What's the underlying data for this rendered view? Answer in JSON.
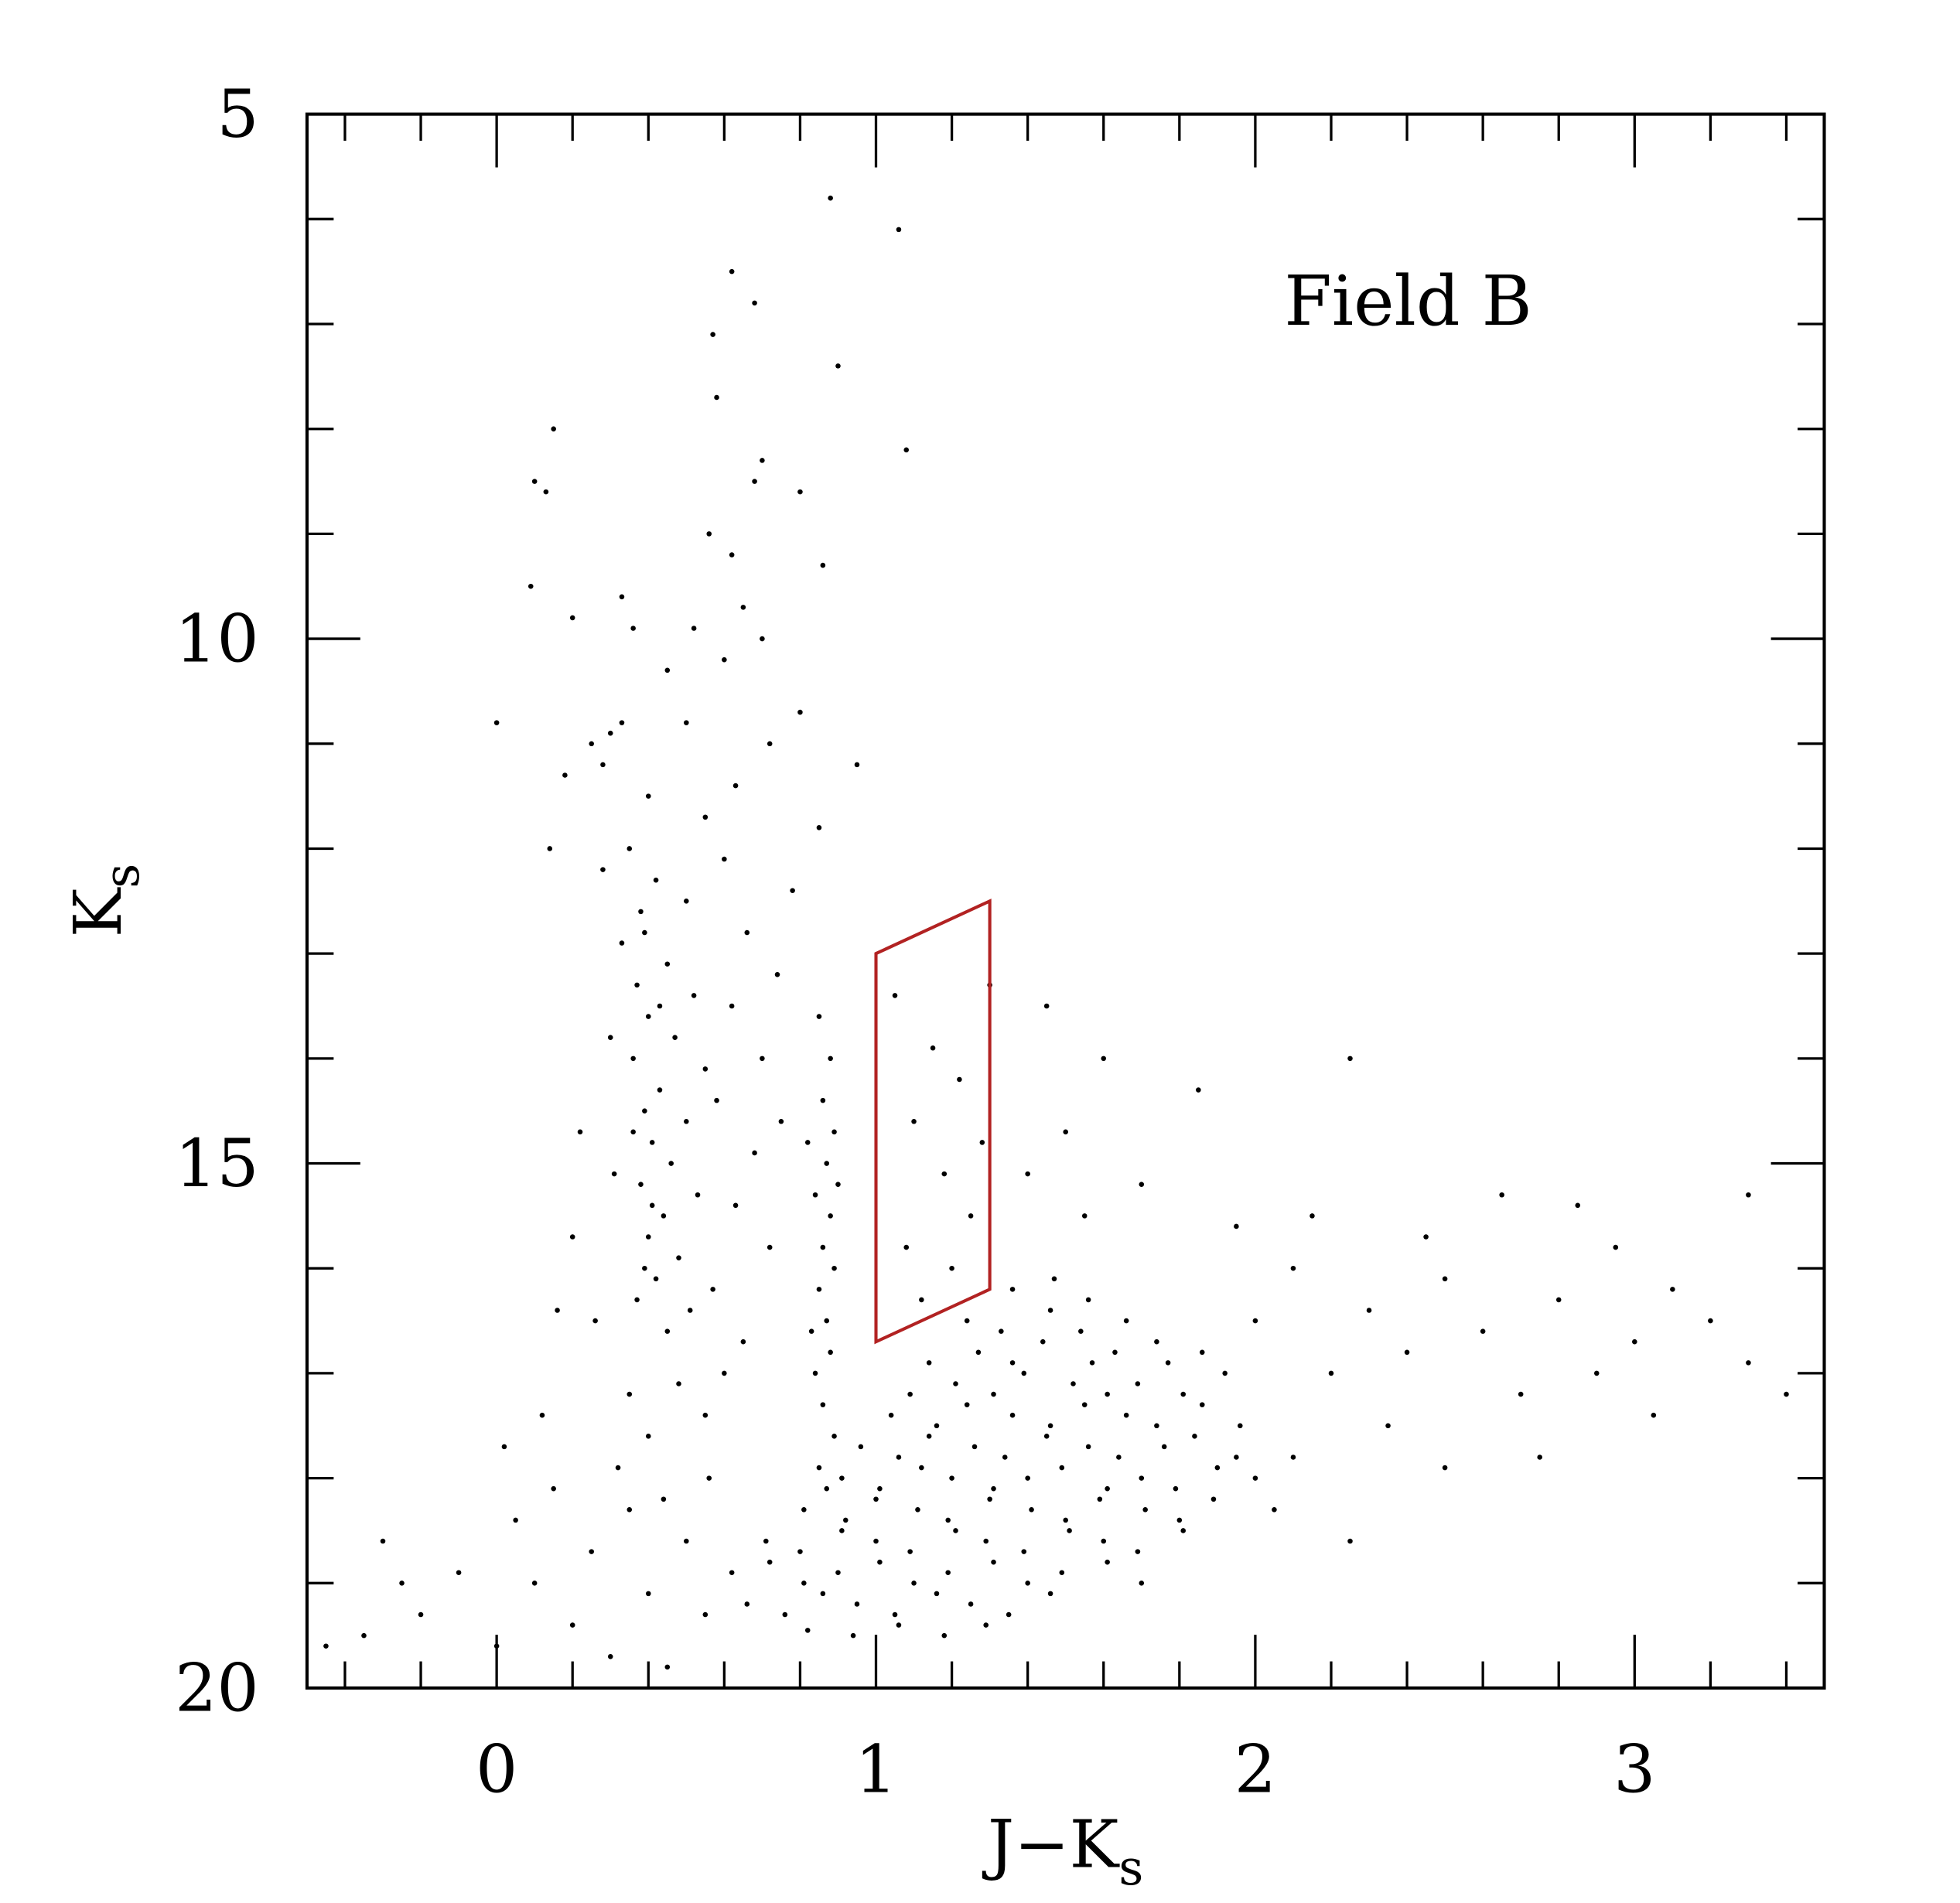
{
  "chart_data": {
    "type": "scatter",
    "title": "Field B",
    "xlabel": {
      "main": "J−K",
      "sub": "s"
    },
    "ylabel": {
      "main": "K",
      "sub": "s"
    },
    "xlim": [
      -0.5,
      3.5
    ],
    "ylim": [
      20,
      5
    ],
    "xticks": [
      0,
      1,
      2,
      3
    ],
    "yticks": [
      5,
      10,
      15,
      20
    ],
    "xminorticks": [
      -0.4,
      -0.2,
      0.2,
      0.4,
      0.6,
      0.8,
      1.2,
      1.4,
      1.6,
      1.8,
      2.2,
      2.4,
      2.6,
      2.8,
      3.2,
      3.4
    ],
    "yminorticks": [
      6,
      7,
      8,
      9,
      11,
      12,
      13,
      14,
      16,
      17,
      18,
      19
    ],
    "color": "#000000",
    "region": {
      "x": [
        1.0,
        1.3,
        1.3,
        1.0
      ],
      "y": [
        13.0,
        12.5,
        16.2,
        16.7
      ],
      "color": "#b22222"
    },
    "x": [
      0.88,
      1.06,
      0.62,
      0.68,
      0.57,
      0.9,
      0.58,
      0.15,
      1.08,
      0.7,
      0.68,
      0.1,
      0.13,
      0.8,
      0.56,
      0.62,
      0.86,
      0.09,
      0.33,
      0.65,
      0.2,
      0.36,
      0.52,
      0.7,
      0.6,
      0.45,
      0.0,
      0.8,
      0.3,
      0.25,
      0.33,
      0.28,
      0.63,
      0.95,
      0.5,
      0.72,
      0.18,
      0.4,
      0.85,
      0.55,
      0.35,
      0.42,
      0.38,
      0.5,
      0.33,
      0.45,
      0.37,
      0.52,
      0.4,
      0.47,
      0.36,
      0.55,
      0.43,
      0.39,
      0.5,
      0.41,
      0.46,
      0.38,
      0.53,
      0.44,
      0.4,
      0.48,
      0.42,
      0.37,
      0.51,
      0.45,
      0.6,
      0.66,
      0.62,
      0.7,
      0.58,
      0.68,
      0.63,
      0.72,
      0.57,
      0.65,
      0.74,
      0.78,
      0.75,
      0.6,
      0.55,
      0.48,
      0.4,
      0.32,
      0.44,
      0.56,
      0.28,
      0.3,
      0.31,
      0.26,
      0.22,
      0.16,
      0.14,
      0.2,
      0.35,
      0.39,
      0.43,
      0.36,
      0.41,
      0.39,
      0.85,
      0.88,
      0.86,
      0.89,
      0.87,
      0.84,
      0.88,
      0.86,
      0.89,
      0.85,
      0.87,
      0.88,
      0.84,
      0.86,
      0.89,
      0.85,
      0.87,
      0.83,
      0.9,
      0.82,
      1.05,
      1.15,
      1.22,
      1.1,
      1.18,
      1.25,
      1.08,
      1.2,
      1.12,
      1.28,
      1.45,
      1.6,
      1.5,
      1.7,
      1.85,
      2.25,
      1.4,
      1.55,
      1.95,
      1.3,
      1.36,
      1.47,
      1.56,
      1.24,
      1.33,
      1.46,
      1.54,
      1.66,
      1.74,
      1.14,
      1.27,
      1.36,
      1.44,
      1.57,
      1.63,
      1.77,
      1.86,
      1.09,
      1.21,
      1.31,
      1.39,
      1.52,
      1.61,
      1.69,
      1.81,
      1.92,
      1.04,
      1.16,
      1.24,
      1.36,
      1.46,
      1.55,
      1.66,
      1.74,
      1.86,
      1.96,
      0.96,
      1.06,
      1.14,
      1.26,
      1.34,
      1.45,
      1.56,
      1.64,
      1.76,
      1.84,
      1.95,
      0.91,
      1.01,
      1.12,
      1.2,
      1.31,
      1.4,
      1.49,
      1.61,
      1.7,
      1.79,
      1.9,
      2.0,
      0.81,
      0.92,
      1.0,
      1.11,
      1.19,
      1.3,
      1.41,
      1.5,
      1.59,
      1.71,
      1.8,
      1.89,
      0.71,
      0.8,
      0.91,
      1.0,
      1.09,
      1.21,
      1.29,
      1.39,
      1.51,
      1.6,
      1.69,
      1.81,
      0.62,
      0.72,
      0.81,
      0.9,
      1.01,
      1.1,
      1.19,
      1.31,
      1.4,
      1.49,
      1.61,
      1.7,
      0.66,
      0.76,
      0.86,
      0.95,
      1.05,
      1.16,
      1.25,
      1.35,
      1.46,
      0.82,
      0.94,
      1.06,
      1.18,
      1.29,
      2.1,
      2.3,
      2.5,
      2.2,
      2.4,
      2.6,
      2.8,
      3.0,
      3.2,
      2.7,
      2.35,
      2.1,
      2.9,
      3.3,
      2.05,
      2.25,
      2.5,
      3.4,
      2.95,
      2.65,
      3.3,
      2.85,
      2.15,
      2.45,
      3.1,
      2.0,
      2.75,
      3.05,
      -0.45,
      -0.35,
      -0.2,
      -0.1,
      0.0,
      0.05,
      0.1,
      0.15,
      0.2,
      0.25,
      0.3,
      0.35,
      0.4,
      0.45,
      0.5,
      0.55,
      -0.25,
      0.02,
      -0.3,
      0.12
    ],
    "values": [
      5.8,
      6.1,
      6.5,
      6.8,
      7.1,
      7.4,
      7.7,
      8.0,
      8.2,
      8.3,
      8.5,
      8.5,
      8.6,
      8.6,
      9.0,
      9.2,
      9.3,
      9.5,
      9.6,
      9.7,
      9.8,
      9.9,
      9.9,
      10.0,
      10.2,
      10.3,
      10.8,
      10.7,
      10.9,
      11.0,
      10.8,
      11.2,
      11.4,
      11.2,
      10.8,
      11.0,
      11.3,
      11.5,
      11.8,
      11.7,
      12.0,
      12.3,
      12.6,
      12.5,
      12.9,
      13.1,
      13.3,
      13.4,
      13.6,
      13.8,
      14.0,
      14.1,
      14.3,
      14.5,
      14.6,
      14.8,
      15.0,
      15.2,
      15.3,
      15.5,
      15.7,
      15.9,
      16.1,
      16.3,
      16.4,
      16.6,
      12.1,
      12.8,
      13.5,
      14.0,
      14.4,
      14.9,
      15.4,
      15.8,
      16.2,
      16.7,
      13.2,
      12.4,
      14.6,
      17.0,
      17.4,
      17.1,
      17.6,
      17.9,
      18.2,
      18.0,
      12.2,
      13.8,
      15.1,
      16.5,
      14.7,
      16.4,
      12.0,
      15.7,
      17.2,
      12.8,
      13.5,
      14.7,
      15.4,
      16.0,
      13.6,
      14.0,
      14.4,
      14.7,
      15.0,
      15.3,
      15.5,
      15.8,
      16.0,
      16.2,
      16.5,
      16.8,
      17.0,
      17.3,
      17.6,
      17.9,
      18.1,
      16.6,
      15.2,
      14.8,
      13.4,
      13.9,
      14.2,
      14.6,
      15.1,
      15.5,
      15.8,
      16.0,
      16.3,
      14.8,
      13.5,
      14.0,
      14.7,
      15.2,
      14.3,
      14.0,
      15.1,
      15.5,
      15.6,
      13.3,
      16.2,
      16.1,
      16.3,
      16.5,
      16.6,
      16.4,
      16.6,
      16.5,
      16.7,
      16.9,
      16.8,
      16.9,
      16.7,
      16.9,
      16.8,
      16.9,
      16.8,
      17.2,
      17.1,
      17.2,
      17.0,
      17.1,
      17.2,
      17.1,
      17.2,
      17.0,
      17.4,
      17.5,
      17.3,
      17.4,
      17.5,
      17.3,
      17.4,
      17.5,
      17.3,
      17.5,
      17.7,
      17.8,
      17.6,
      17.7,
      17.8,
      17.6,
      17.7,
      17.8,
      17.7,
      17.6,
      17.8,
      18.0,
      18.1,
      17.9,
      18.0,
      18.1,
      18.0,
      17.9,
      18.1,
      18.0,
      18.1,
      17.9,
      18.0,
      18.3,
      18.4,
      18.2,
      18.3,
      18.4,
      18.2,
      18.3,
      18.4,
      18.2,
      18.3,
      18.4,
      18.2,
      18.6,
      18.7,
      18.5,
      18.6,
      18.7,
      18.5,
      18.6,
      18.7,
      18.5,
      18.6,
      18.7,
      18.5,
      18.9,
      18.8,
      19.0,
      18.9,
      18.8,
      19.0,
      18.9,
      18.8,
      19.0,
      18.9,
      18.8,
      19.0,
      19.2,
      19.3,
      19.1,
      19.2,
      19.3,
      19.1,
      19.2,
      19.3,
      19.1,
      19.45,
      19.5,
      19.4,
      19.5,
      19.4,
      16.0,
      16.4,
      16.1,
      17.0,
      16.8,
      16.6,
      16.3,
      16.7,
      16.5,
      17.2,
      17.5,
      17.8,
      17.0,
      16.9,
      18.3,
      18.6,
      17.9,
      17.2,
      15.8,
      15.3,
      15.3,
      15.4,
      15.5,
      15.7,
      16.2,
      16.5,
      17.8,
      17.4,
      19.6,
      19.5,
      19.3,
      18.9,
      19.6,
      18.4,
      19.0,
      18.1,
      19.4,
      18.7,
      19.7,
      18.3,
      19.1,
      19.8,
      18.6,
      19.3,
      19.0,
      17.7,
      18.6,
      17.4
    ]
  }
}
